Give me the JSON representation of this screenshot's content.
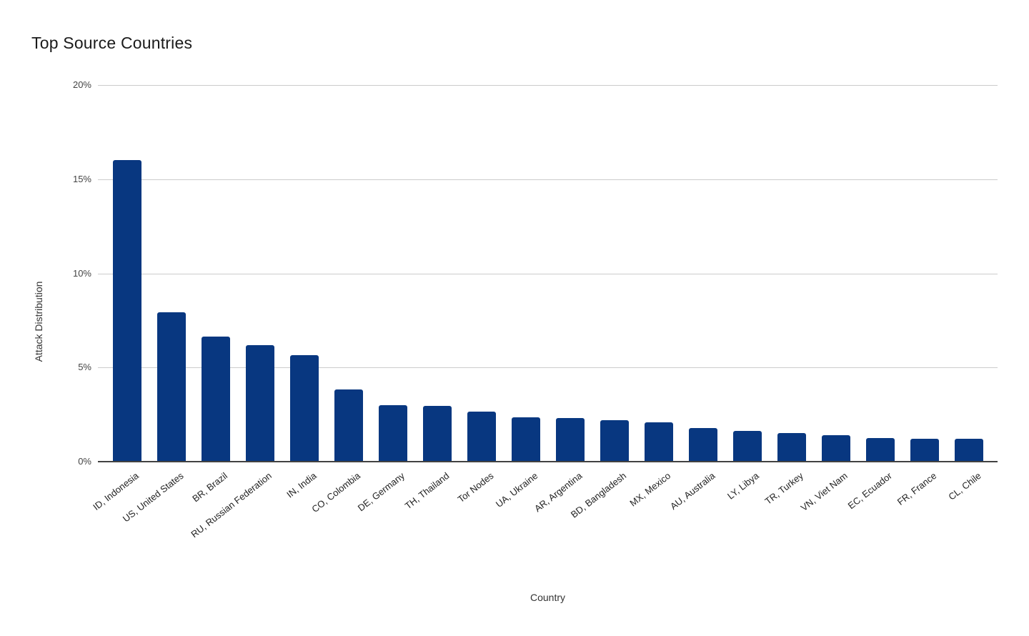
{
  "chart_data": {
    "type": "bar",
    "title": "Top Source Countries",
    "xlabel": "Country",
    "ylabel": "Attack Distribution",
    "ylim": [
      0,
      20
    ],
    "yticks": [
      {
        "value": 0,
        "label": "0%"
      },
      {
        "value": 5,
        "label": "5%"
      },
      {
        "value": 10,
        "label": "10%"
      },
      {
        "value": 15,
        "label": "15%"
      },
      {
        "value": 20,
        "label": "20%"
      }
    ],
    "categories": [
      "ID, Indonesia",
      "US, United States",
      "BR, Brazil",
      "RU, Russian Federation",
      "IN, India",
      "CO, Colombia",
      "DE, Germany",
      "TH, Thailand",
      "Tor Nodes",
      "UA, Ukraine",
      "AR, Argentina",
      "BD, Bangladesh",
      "MX, Mexico",
      "AU, Australia",
      "LY, Libya",
      "TR, Turkey",
      "VN, Viet Nam",
      "EC, Ecuador",
      "FR, France",
      "CL, Chile"
    ],
    "values": [
      16.0,
      7.95,
      6.65,
      6.2,
      5.65,
      3.85,
      3.0,
      2.95,
      2.65,
      2.35,
      2.3,
      2.2,
      2.1,
      1.8,
      1.65,
      1.5,
      1.4,
      1.25,
      1.2,
      1.2
    ],
    "unit": "%",
    "bar_color": "#083780",
    "gridline_color": "#cccccc",
    "axis_line_color": "#424242",
    "grid": true,
    "legend": "none"
  }
}
